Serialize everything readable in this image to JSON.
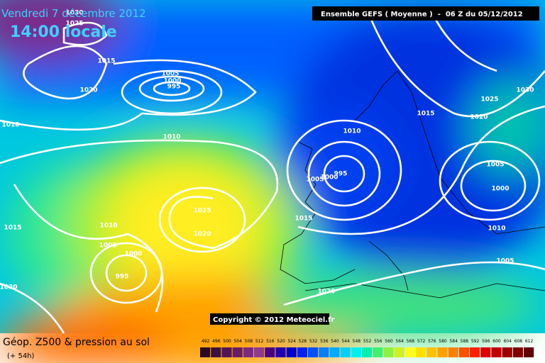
{
  "header": {
    "date": "Vendredi 7 décembre 2012",
    "time": "14:00 locale",
    "model": "Ensemble GEFS ( Moyenne )  -  06 Z du 05/12/2012"
  },
  "copyright": "Copyright © 2012 Meteociel.fr",
  "footer": {
    "title": "Géop. Z500 & pression au sol",
    "lead": "(+ 54h)"
  },
  "isobar_labels": [
    "1030",
    "1025",
    "1015",
    "1020",
    "1005",
    "1000",
    "995",
    "1010",
    "1010",
    "1025",
    "1020",
    "1010",
    "1005",
    "1000",
    "995",
    "1015",
    "1020",
    "1010",
    "1005",
    "1000",
    "995",
    "1015",
    "1020",
    "1015",
    "1025",
    "1030",
    "1020",
    "1005",
    "1000",
    "1010",
    "1005"
  ],
  "legend": [
    {
      "value": 492,
      "color": "#2a0a2a"
    },
    {
      "value": 496,
      "color": "#3d0f3d"
    },
    {
      "value": 500,
      "color": "#521552"
    },
    {
      "value": 504,
      "color": "#681c68"
    },
    {
      "value": 508,
      "color": "#7c2a7c"
    },
    {
      "value": 512,
      "color": "#8e3a8e"
    },
    {
      "value": 516,
      "color": "#4b0082"
    },
    {
      "value": 520,
      "color": "#2200aa"
    },
    {
      "value": 524,
      "color": "#0000cc"
    },
    {
      "value": 528,
      "color": "#0022ee"
    },
    {
      "value": 532,
      "color": "#0050ff"
    },
    {
      "value": 536,
      "color": "#0080ff"
    },
    {
      "value": 540,
      "color": "#00aaff"
    },
    {
      "value": 544,
      "color": "#00d0ff"
    },
    {
      "value": 548,
      "color": "#00f0f0"
    },
    {
      "value": 552,
      "color": "#00f0b0"
    },
    {
      "value": 556,
      "color": "#40f070"
    },
    {
      "value": 560,
      "color": "#90f040"
    },
    {
      "value": 564,
      "color": "#d0f020"
    },
    {
      "value": 568,
      "color": "#ffff20"
    },
    {
      "value": 572,
      "color": "#ffe000"
    },
    {
      "value": 576,
      "color": "#ffc000"
    },
    {
      "value": 580,
      "color": "#ffa000"
    },
    {
      "value": 584,
      "color": "#ff8000"
    },
    {
      "value": 588,
      "color": "#ff5000"
    },
    {
      "value": 592,
      "color": "#ff2000"
    },
    {
      "value": 596,
      "color": "#e00000"
    },
    {
      "value": 600,
      "color": "#c00000"
    },
    {
      "value": 604,
      "color": "#a00000"
    },
    {
      "value": 608,
      "color": "#800000"
    },
    {
      "value": 612,
      "color": "#600000"
    }
  ]
}
